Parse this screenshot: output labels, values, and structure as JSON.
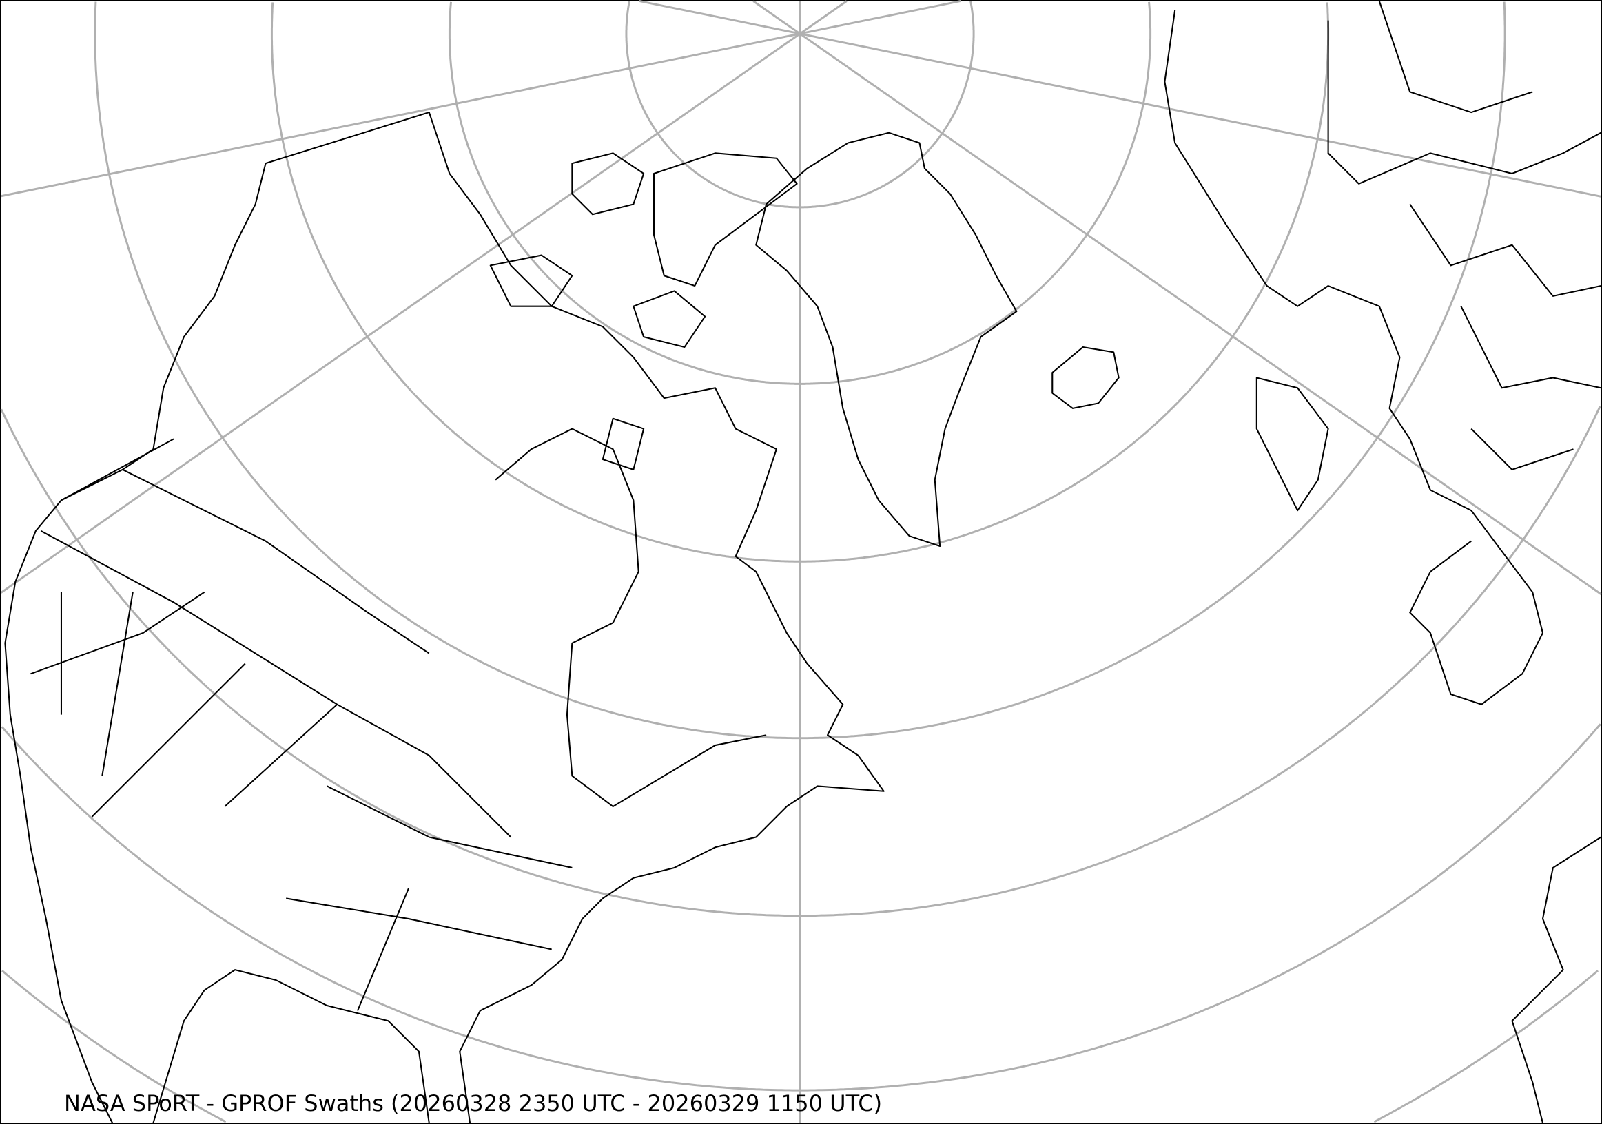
{
  "title": "NASA SPoRT - GPROF Swaths (20260328 2350 UTC - 20260329 1150 UTC)",
  "map": {
    "projection": "polar stereographic (north pole)",
    "region": "North America, Greenland, North Atlantic, Europe",
    "graticule_color": "#b0b0b0",
    "coastline_color": "#000000",
    "background": "#ffffff"
  }
}
